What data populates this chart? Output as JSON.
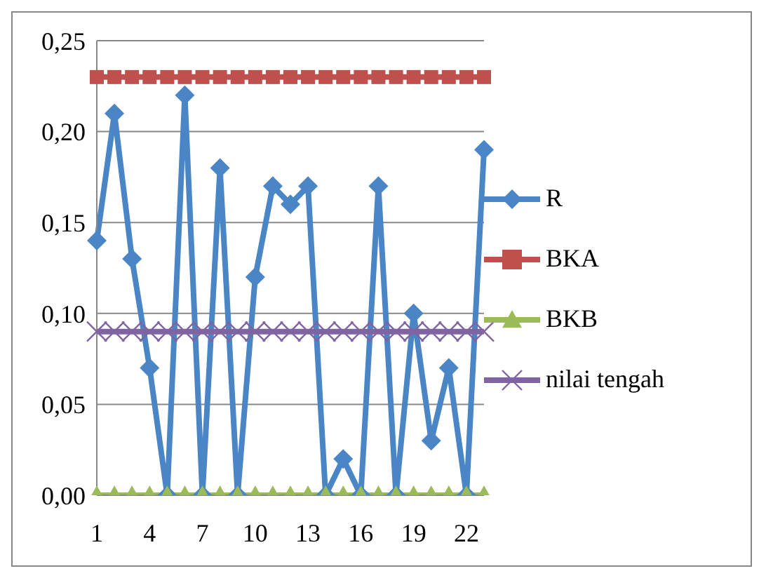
{
  "chart_data": {
    "type": "line",
    "categories": [
      "1",
      null,
      null,
      "4",
      null,
      null,
      "7",
      null,
      null,
      "10",
      null,
      null,
      "13",
      null,
      null,
      "16",
      null,
      null,
      "19",
      null,
      null,
      "22",
      null
    ],
    "series": [
      {
        "name": "R",
        "color": "#4a86c5",
        "marker": "diamond",
        "values": [
          0.14,
          0.21,
          0.13,
          0.07,
          0,
          0.22,
          0,
          0.18,
          0,
          0.12,
          0.17,
          0.16,
          0.17,
          0,
          0.02,
          0,
          0.17,
          0,
          0.1,
          0.03,
          0.07,
          0,
          0.19
        ]
      },
      {
        "name": "BKA",
        "color": "#c0504d",
        "marker": "square",
        "values": [
          0.23,
          0.23,
          0.23,
          0.23,
          0.23,
          0.23,
          0.23,
          0.23,
          0.23,
          0.23,
          0.23,
          0.23,
          0.23,
          0.23,
          0.23,
          0.23,
          0.23,
          0.23,
          0.23,
          0.23,
          0.23,
          0.23,
          0.23
        ]
      },
      {
        "name": "BKB",
        "color": "#9bbb59",
        "marker": "triangle",
        "values": [
          0,
          0,
          0,
          0,
          0,
          0,
          0,
          0,
          0,
          0,
          0,
          0,
          0,
          0,
          0,
          0,
          0,
          0,
          0,
          0,
          0,
          0,
          0
        ]
      },
      {
        "name": "nilai tengah",
        "color": "#8064a2",
        "marker": "cross",
        "values": [
          0.09,
          0.09,
          0.09,
          0.09,
          0.09,
          0.09,
          0.09,
          0.09,
          0.09,
          0.09,
          0.09,
          0.09,
          0.09,
          0.09,
          0.09,
          0.09,
          0.09,
          0.09,
          0.09,
          0.09,
          0.09,
          0.09,
          0.09
        ]
      }
    ],
    "ylim": [
      0,
      0.25
    ],
    "yticks": [
      {
        "value": 0,
        "label": "0,00"
      },
      {
        "value": 0.05,
        "label": "0,05"
      },
      {
        "value": 0.1,
        "label": "0,10"
      },
      {
        "value": 0.15,
        "label": "0,15"
      },
      {
        "value": 0.2,
        "label": "0,20"
      },
      {
        "value": 0.25,
        "label": "0,25"
      }
    ],
    "grid": "y",
    "legend": "right",
    "line_style": "solid"
  }
}
